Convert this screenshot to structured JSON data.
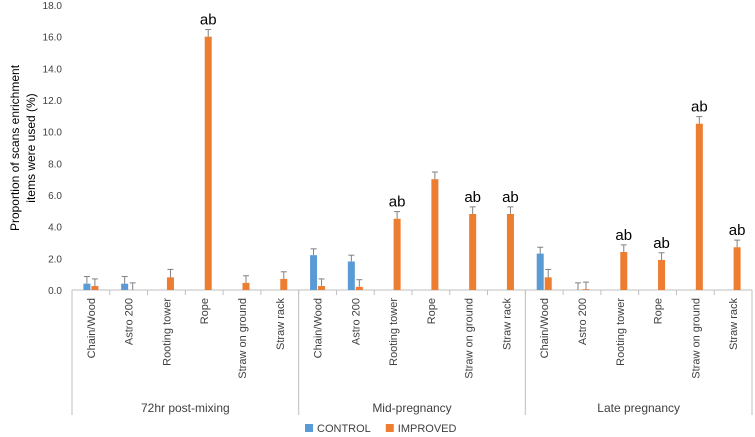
{
  "chart_data": {
    "type": "bar",
    "title": "",
    "ylabel_lines": [
      "Proportion of scans enrichment",
      "items were used (%)"
    ],
    "ylim": [
      0,
      18
    ],
    "yticks": [
      "0.0",
      "2.0",
      "4.0",
      "6.0",
      "8.0",
      "10.0",
      "12.0",
      "14.0",
      "16.0",
      "18.0"
    ],
    "groups": [
      {
        "name": "72hr post-mixing",
        "categories": [
          "Chain/Wood",
          "Astro 200",
          "Rooting tower",
          "Rope",
          "Straw on ground",
          "Straw rack"
        ]
      },
      {
        "name": "Mid-pregnancy",
        "categories": [
          "Chain/Wood",
          "Astro 200",
          "Rooting tower",
          "Rope",
          "Straw on ground",
          "Straw rack"
        ]
      },
      {
        "name": "Late pregnancy",
        "categories": [
          "Chain/Wood",
          "Astro 200",
          "Rooting tower",
          "Rope",
          "Straw on ground",
          "Straw rack"
        ]
      }
    ],
    "series": [
      {
        "name": "CONTROL",
        "color": "#5b9bd5",
        "values": [
          0.4,
          0.4,
          0,
          0,
          0,
          0,
          2.2,
          1.8,
          0,
          0,
          0,
          0,
          2.3,
          0,
          0,
          0,
          0,
          0
        ],
        "errors": [
          0.45,
          0.45,
          0,
          0,
          0,
          0,
          0.4,
          0.4,
          0,
          0,
          0,
          0,
          0.4,
          0.45,
          0,
          0,
          0,
          0
        ]
      },
      {
        "name": "IMPROVED",
        "color": "#ed7d31",
        "values": [
          0.25,
          0.0,
          0.8,
          16.0,
          0.45,
          0.7,
          0.25,
          0.2,
          4.5,
          7.0,
          4.8,
          4.8,
          0.8,
          0.05,
          2.4,
          1.9,
          10.5,
          2.7
        ],
        "errors": [
          0.45,
          0.45,
          0.5,
          0.45,
          0.45,
          0.45,
          0.45,
          0.45,
          0.45,
          0.45,
          0.45,
          0.45,
          0.5,
          0.45,
          0.45,
          0.45,
          0.45,
          0.45
        ]
      }
    ],
    "annotations": [
      "",
      "",
      "",
      "ab",
      "",
      "",
      "",
      "",
      "ab",
      "",
      "ab",
      "ab",
      "",
      "",
      "ab",
      "ab",
      "ab",
      "ab"
    ],
    "legend": "bottom"
  }
}
